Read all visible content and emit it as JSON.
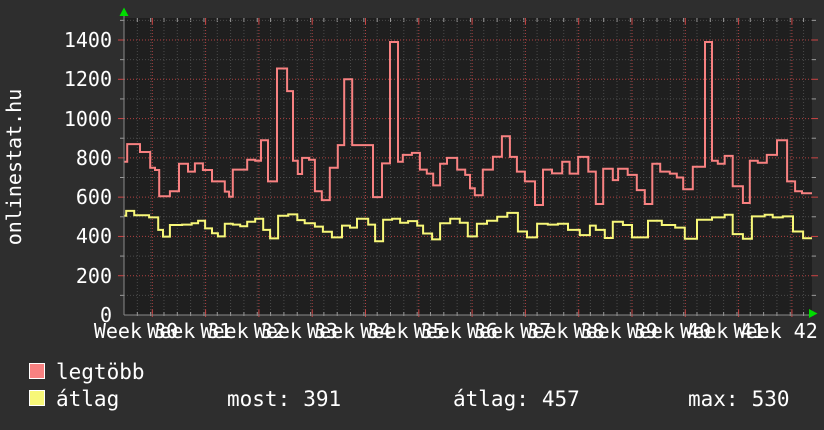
{
  "title": {
    "text": "onlinestat.hu"
  },
  "legend": [
    {
      "label": "legtöbb",
      "color": "#f88181"
    },
    {
      "label": "átlag",
      "color": "#f7f778"
    }
  ],
  "stats": [
    {
      "label": "most:",
      "value": "391"
    },
    {
      "label": "átlag:",
      "value": "457"
    },
    {
      "label": "max:",
      "value": "530"
    }
  ],
  "colors": {
    "background": "#2e2e2e",
    "plot_background": "#1f1f1f",
    "grid_minor": "#4a4a4a",
    "grid_major": "#b04040",
    "axis": "#8a8a8a",
    "arrow": "#00dd00",
    "text": "#ffffff",
    "series_max": "#f88181",
    "series_avg": "#f7f778"
  },
  "chart_data": {
    "type": "line",
    "step": true,
    "title": "onlinestat.hu",
    "x_unit": "week",
    "x_range": [
      29.47,
      42.38
    ],
    "ylim": [
      0,
      1513
    ],
    "y_ticks": [
      0,
      200,
      400,
      600,
      800,
      1000,
      1200,
      1400
    ],
    "x_tick_labels": [
      "Week 30",
      "Week 31",
      "Week 32",
      "Week 33",
      "Week 34",
      "Week 35",
      "Week 36",
      "Week 37",
      "Week 38",
      "Week 39",
      "Week 40",
      "Week 41",
      "Week 42"
    ],
    "grid": "on",
    "legend_position": "bottom-left",
    "stats_shown_for": "átlag",
    "stats": {
      "most": 391,
      "átlag": 457,
      "max": 530
    },
    "series": [
      {
        "name": "legtöbb",
        "color": "#f88181",
        "points": [
          [
            29.47,
            780
          ],
          [
            29.53,
            870
          ],
          [
            29.77,
            830
          ],
          [
            29.96,
            750
          ],
          [
            30.05,
            738
          ],
          [
            30.13,
            605
          ],
          [
            30.33,
            630
          ],
          [
            30.5,
            770
          ],
          [
            30.67,
            730
          ],
          [
            30.8,
            772
          ],
          [
            30.95,
            738
          ],
          [
            31.12,
            680
          ],
          [
            31.36,
            628
          ],
          [
            31.44,
            602
          ],
          [
            31.51,
            740
          ],
          [
            31.78,
            790
          ],
          [
            31.93,
            785
          ],
          [
            32.04,
            890
          ],
          [
            32.17,
            680
          ],
          [
            32.34,
            1255
          ],
          [
            32.53,
            1140
          ],
          [
            32.64,
            785
          ],
          [
            32.73,
            718
          ],
          [
            32.81,
            800
          ],
          [
            32.94,
            790
          ],
          [
            33.05,
            630
          ],
          [
            33.18,
            585
          ],
          [
            33.33,
            750
          ],
          [
            33.48,
            865
          ],
          [
            33.6,
            1200
          ],
          [
            33.75,
            865
          ],
          [
            34.14,
            600
          ],
          [
            34.31,
            772
          ],
          [
            34.46,
            1390
          ],
          [
            34.61,
            780
          ],
          [
            34.7,
            815
          ],
          [
            34.87,
            825
          ],
          [
            35.02,
            740
          ],
          [
            35.15,
            720
          ],
          [
            35.27,
            660
          ],
          [
            35.4,
            770
          ],
          [
            35.53,
            800
          ],
          [
            35.72,
            740
          ],
          [
            35.87,
            713
          ],
          [
            35.96,
            645
          ],
          [
            36.05,
            610
          ],
          [
            36.2,
            740
          ],
          [
            36.39,
            806
          ],
          [
            36.56,
            910
          ],
          [
            36.71,
            805
          ],
          [
            36.84,
            730
          ],
          [
            36.99,
            680
          ],
          [
            37.18,
            560
          ],
          [
            37.33,
            740
          ],
          [
            37.5,
            721
          ],
          [
            37.69,
            780
          ],
          [
            37.83,
            720
          ],
          [
            37.99,
            805
          ],
          [
            38.18,
            730
          ],
          [
            38.32,
            565
          ],
          [
            38.46,
            745
          ],
          [
            38.64,
            687
          ],
          [
            38.74,
            745
          ],
          [
            38.92,
            713
          ],
          [
            39.09,
            636
          ],
          [
            39.24,
            565
          ],
          [
            39.38,
            770
          ],
          [
            39.53,
            730
          ],
          [
            39.71,
            720
          ],
          [
            39.84,
            700
          ],
          [
            39.96,
            640
          ],
          [
            40.14,
            755
          ],
          [
            40.37,
            1390
          ],
          [
            40.5,
            785
          ],
          [
            40.61,
            770
          ],
          [
            40.74,
            810
          ],
          [
            40.89,
            655
          ],
          [
            41.08,
            570
          ],
          [
            41.21,
            785
          ],
          [
            41.36,
            775
          ],
          [
            41.53,
            815
          ],
          [
            41.72,
            890
          ],
          [
            41.91,
            680
          ],
          [
            42.06,
            630
          ],
          [
            42.19,
            620
          ]
        ]
      },
      {
        "name": "átlag",
        "color": "#f7f778",
        "points": [
          [
            29.47,
            505
          ],
          [
            29.51,
            530
          ],
          [
            29.66,
            508
          ],
          [
            29.94,
            497
          ],
          [
            30.11,
            433
          ],
          [
            30.2,
            399
          ],
          [
            30.33,
            458
          ],
          [
            30.56,
            460
          ],
          [
            30.74,
            467
          ],
          [
            30.86,
            480
          ],
          [
            30.99,
            441
          ],
          [
            31.12,
            416
          ],
          [
            31.23,
            400
          ],
          [
            31.36,
            465
          ],
          [
            31.51,
            460
          ],
          [
            31.65,
            452
          ],
          [
            31.78,
            475
          ],
          [
            31.93,
            490
          ],
          [
            32.08,
            433
          ],
          [
            32.21,
            390
          ],
          [
            32.36,
            505
          ],
          [
            32.55,
            512
          ],
          [
            32.72,
            483
          ],
          [
            32.86,
            467
          ],
          [
            33.05,
            450
          ],
          [
            33.2,
            424
          ],
          [
            33.37,
            395
          ],
          [
            33.56,
            455
          ],
          [
            33.71,
            445
          ],
          [
            33.84,
            490
          ],
          [
            34.05,
            460
          ],
          [
            34.18,
            375
          ],
          [
            34.33,
            485
          ],
          [
            34.5,
            490
          ],
          [
            34.65,
            470
          ],
          [
            34.8,
            478
          ],
          [
            34.97,
            455
          ],
          [
            35.08,
            415
          ],
          [
            35.25,
            385
          ],
          [
            35.4,
            467
          ],
          [
            35.59,
            490
          ],
          [
            35.77,
            470
          ],
          [
            35.92,
            400
          ],
          [
            36.09,
            465
          ],
          [
            36.28,
            480
          ],
          [
            36.47,
            500
          ],
          [
            36.66,
            520
          ],
          [
            36.86,
            425
          ],
          [
            37.03,
            395
          ],
          [
            37.22,
            465
          ],
          [
            37.42,
            460
          ],
          [
            37.61,
            465
          ],
          [
            37.8,
            433
          ],
          [
            38.02,
            407
          ],
          [
            38.21,
            455
          ],
          [
            38.32,
            433
          ],
          [
            38.49,
            392
          ],
          [
            38.64,
            475
          ],
          [
            38.83,
            458
          ],
          [
            39.0,
            395
          ],
          [
            39.3,
            480
          ],
          [
            39.56,
            458
          ],
          [
            39.81,
            445
          ],
          [
            39.99,
            388
          ],
          [
            40.22,
            485
          ],
          [
            40.5,
            497
          ],
          [
            40.74,
            510
          ],
          [
            40.89,
            412
          ],
          [
            41.08,
            388
          ],
          [
            41.25,
            502
          ],
          [
            41.49,
            510
          ],
          [
            41.64,
            497
          ],
          [
            41.83,
            502
          ],
          [
            42.02,
            425
          ],
          [
            42.21,
            391
          ]
        ]
      }
    ]
  }
}
